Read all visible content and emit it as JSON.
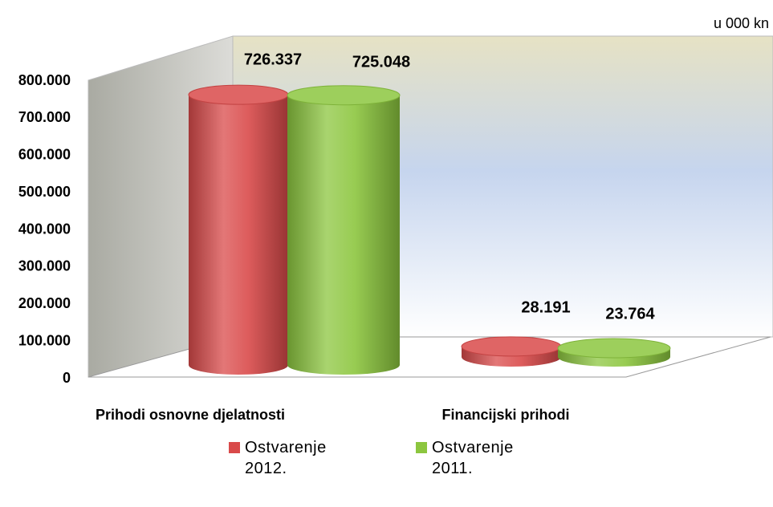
{
  "chart_data": {
    "type": "bar3d-cylinder",
    "annotation": "u 000 kn",
    "categories": [
      "Prihodi osnovne djelatnosti",
      "Financijski prihodi"
    ],
    "series": [
      {
        "name": "Ostvarenje 2012.",
        "color": "#d94a4a",
        "values": [
          726337,
          28191
        ],
        "value_labels": [
          "726.337",
          "28.191"
        ]
      },
      {
        "name": "Ostvarenje 2011.",
        "color": "#8cc63f",
        "values": [
          725048,
          23764
        ],
        "value_labels": [
          "725.048",
          "23.764"
        ]
      }
    ],
    "ylim": [
      0,
      800000
    ],
    "yticks": [
      0,
      {
        "value": 100000,
        "label": "100.000"
      },
      {
        "value": 200000,
        "label": "200.000"
      },
      {
        "value": 300000,
        "label": "300.000"
      },
      {
        "value": 400000,
        "label": "400.000"
      },
      {
        "value": 500000,
        "label": "500.000"
      },
      {
        "value": 600000,
        "label": "600.000"
      },
      {
        "value": 700000,
        "label": "700.000"
      },
      {
        "value": 800000,
        "label": "800.000"
      }
    ]
  }
}
